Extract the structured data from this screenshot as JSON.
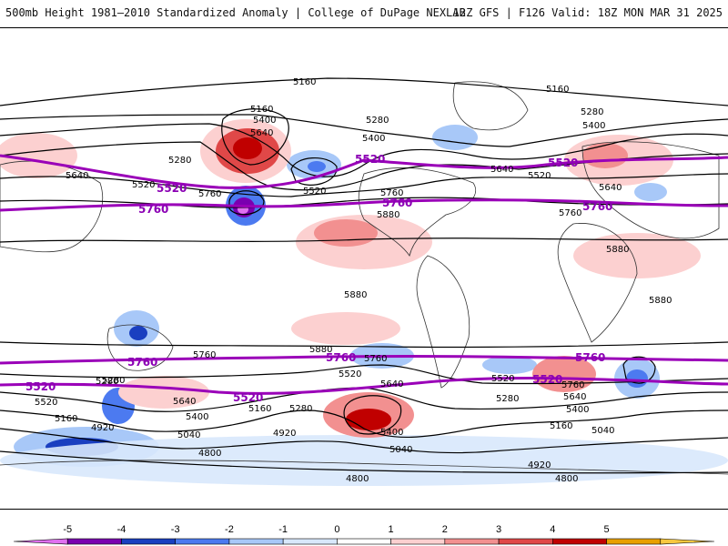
{
  "header": {
    "title": "500mb Height 1981–2010 Standardized Anomaly | College of DuPage NEXLAB",
    "run_info": "12Z GFS | F126 Valid: 18Z MON MAR 31 2025"
  },
  "map": {
    "contour_labels": [
      "5160",
      "5280",
      "5400",
      "5640",
      "5160",
      "5280",
      "5400",
      "5520",
      "5640",
      "5760",
      "5880",
      "4920",
      "4800",
      "5040"
    ],
    "thick_contour_color": "#9a00b8",
    "thick_labels": [
      "5520",
      "5760"
    ]
  },
  "colorbar": {
    "ticks": [
      "-5",
      "-4",
      "-3",
      "-2",
      "-1",
      "0",
      "1",
      "2",
      "3",
      "4",
      "5"
    ],
    "colors": [
      "#e070f0",
      "#7a00b0",
      "#1a3fc0",
      "#4c7af0",
      "#a8c8f8",
      "#d8e8fc",
      "#ffffff",
      "#fcd0d0",
      "#f29090",
      "#e04848",
      "#c00000",
      "#e8a000",
      "#f8c840"
    ]
  }
}
